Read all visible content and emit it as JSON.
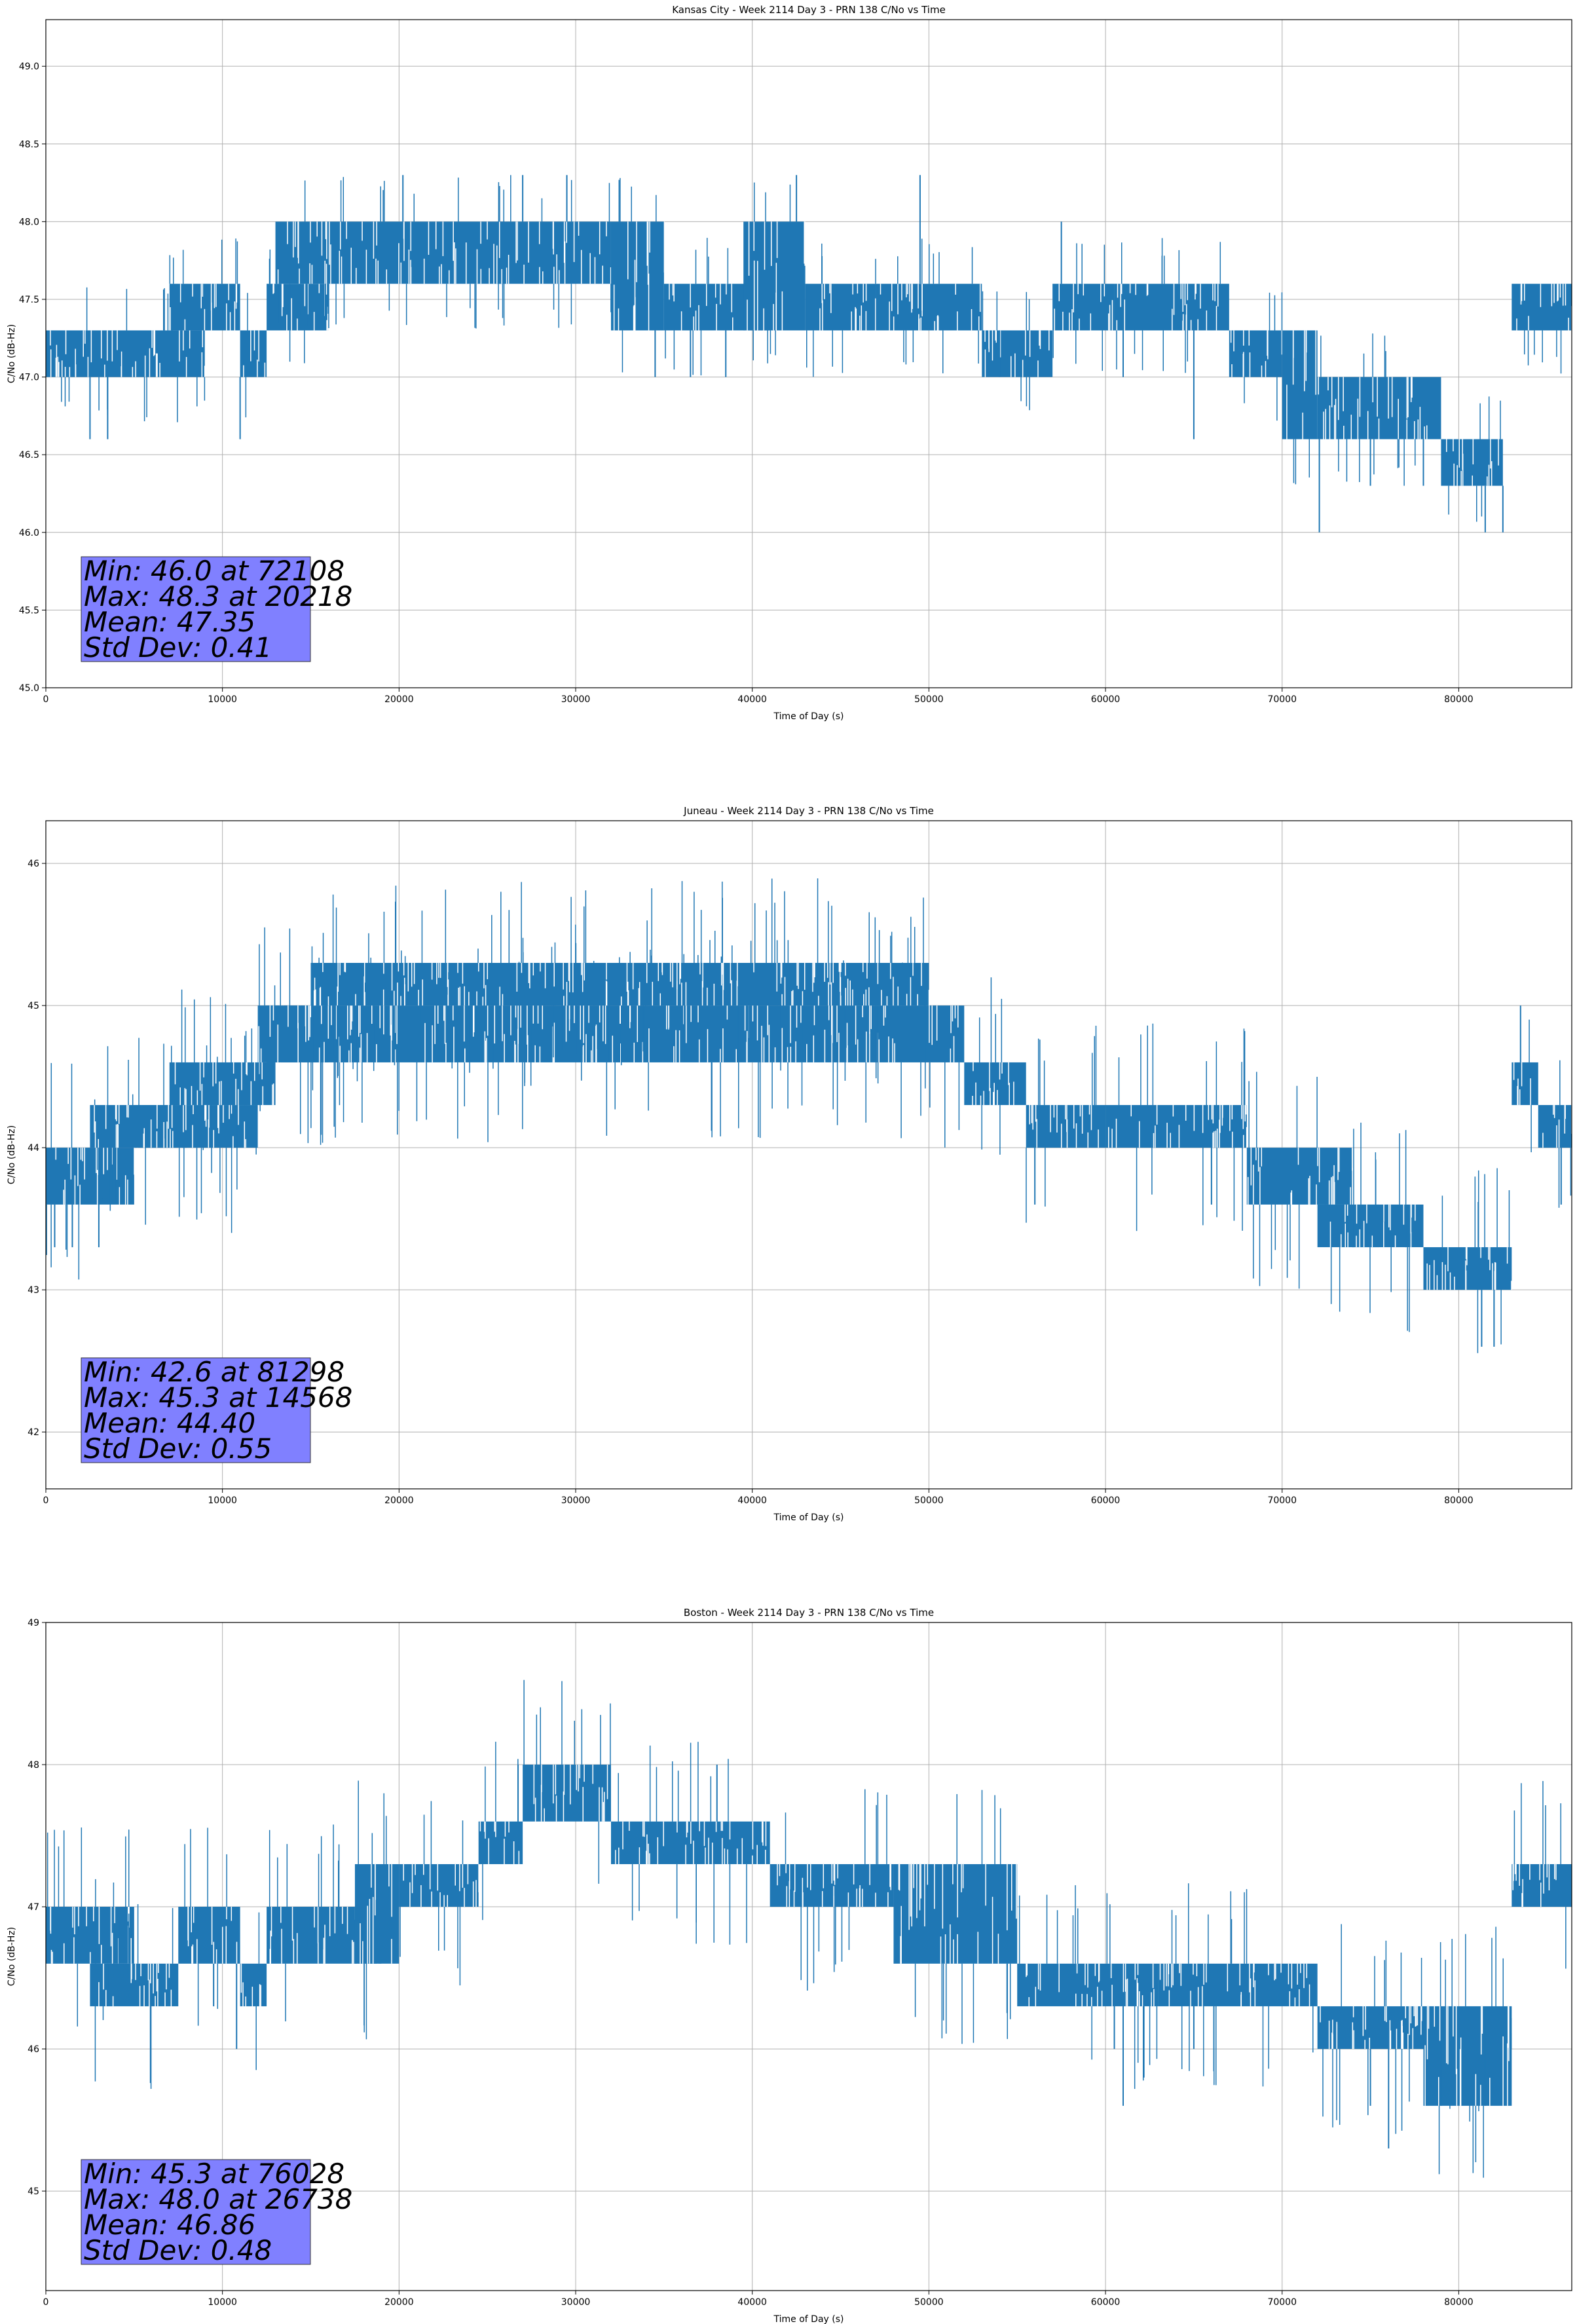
{
  "figure": {
    "background": "#ffffff",
    "line_color": "#1f77b4",
    "grid_color": "#b0b0b0",
    "stats_box_color": "#8080ff"
  },
  "chart_data": [
    {
      "type": "line",
      "title": "Kansas City - Week 2114 Day 3 - PRN 138 C/No vs Time",
      "xlabel": "Time of Day (s)",
      "ylabel": "C/No (dB-Hz)",
      "xlim": [
        0,
        86400
      ],
      "ylim": [
        45.0,
        49.3
      ],
      "xticks": [
        0,
        10000,
        20000,
        30000,
        40000,
        50000,
        60000,
        70000,
        80000
      ],
      "xtick_labels": [
        "0",
        "10000",
        "20000",
        "30000",
        "40000",
        "50000",
        "60000",
        "70000",
        "80000"
      ],
      "yticks": [
        45.0,
        45.5,
        46.0,
        46.5,
        47.0,
        47.5,
        48.0,
        48.5,
        49.0
      ],
      "ytick_labels": [
        "45.0",
        "45.5",
        "46.0",
        "46.5",
        "47.0",
        "47.5",
        "48.0",
        "48.5",
        "49.0"
      ],
      "grid": true,
      "series": [
        {
          "color": "#1f77b4",
          "bands": [
            [
              0,
              9000,
              47.0,
              47.3
            ],
            [
              7000,
              11000,
              47.3,
              47.6
            ],
            [
              11000,
              12500,
              47.0,
              47.3
            ],
            [
              12500,
              16000,
              47.3,
              47.6
            ],
            [
              13000,
              26000,
              47.6,
              48.0
            ],
            [
              25500,
              32000,
              47.6,
              48.0
            ],
            [
              32000,
              35000,
              47.3,
              48.0
            ],
            [
              35000,
              41000,
              47.3,
              47.6
            ],
            [
              39500,
              43000,
              47.3,
              48.0
            ],
            [
              43000,
              47000,
              47.3,
              47.6
            ],
            [
              47000,
              53000,
              47.3,
              47.6
            ],
            [
              53000,
              57000,
              47.0,
              47.3
            ],
            [
              57000,
              60500,
              47.3,
              47.6
            ],
            [
              60500,
              67000,
              47.3,
              47.6
            ],
            [
              67000,
              70000,
              47.0,
              47.3
            ],
            [
              70000,
              72000,
              46.6,
              47.3
            ],
            [
              72000,
              79000,
              46.6,
              47.0
            ],
            [
              79000,
              82500,
              46.3,
              46.6
            ],
            [
              83000,
              86400,
              47.3,
              47.6
            ]
          ],
          "spikes": [
            [
              2500,
              46.6
            ],
            [
              3500,
              46.6
            ],
            [
              11000,
              46.6
            ],
            [
              45000,
              47.6
            ],
            [
              72108,
              46.0
            ],
            [
              75000,
              46.3
            ],
            [
              78000,
              46.3
            ],
            [
              81500,
              46.0
            ],
            [
              82500,
              46.0
            ],
            [
              20218,
              48.3
            ],
            [
              27000,
              48.3
            ],
            [
              29500,
              48.3
            ],
            [
              42500,
              48.3
            ],
            [
              49500,
              48.3
            ],
            [
              34500,
              47.0
            ],
            [
              36500,
              47.0
            ],
            [
              38500,
              47.0
            ],
            [
              54000,
              47.0
            ],
            [
              57500,
              48.0
            ],
            [
              61000,
              47.0
            ],
            [
              65000,
              46.6
            ]
          ]
        }
      ],
      "stats_lines": [
        "Min: 46.0 at 72108",
        "Max: 48.3 at 20218",
        "Mean: 47.35",
        "Std Dev: 0.41"
      ]
    },
    {
      "type": "line",
      "title": "Juneau - Week 2114 Day 3 - PRN 138 C/No vs Time",
      "xlabel": "Time of Day (s)",
      "ylabel": "C/No (dB-Hz)",
      "xlim": [
        0,
        86400
      ],
      "ylim": [
        41.6,
        46.3
      ],
      "xticks": [
        0,
        10000,
        20000,
        30000,
        40000,
        50000,
        60000,
        70000,
        80000
      ],
      "xtick_labels": [
        "0",
        "10000",
        "20000",
        "30000",
        "40000",
        "50000",
        "60000",
        "70000",
        "80000"
      ],
      "yticks": [
        42,
        43,
        44,
        45,
        46
      ],
      "ytick_labels": [
        "42",
        "43",
        "44",
        "45",
        "46"
      ],
      "grid": true,
      "series": [
        {
          "color": "#1f77b4",
          "bands": [
            [
              0,
              5000,
              43.6,
              44.0
            ],
            [
              2500,
              8000,
              44.0,
              44.3
            ],
            [
              5000,
              12000,
              44.0,
              44.3
            ],
            [
              7000,
              13000,
              44.3,
              44.6
            ],
            [
              12000,
              16000,
              44.6,
              45.0
            ],
            [
              12500,
              52000,
              44.6,
              45.0
            ],
            [
              15000,
              50000,
              45.0,
              45.3
            ],
            [
              52000,
              55500,
              44.3,
              44.6
            ],
            [
              55500,
              60000,
              44.0,
              44.3
            ],
            [
              60000,
              68000,
              44.0,
              44.3
            ],
            [
              68000,
              74000,
              43.6,
              44.0
            ],
            [
              72000,
              75500,
              43.3,
              43.6
            ],
            [
              74000,
              78000,
              43.3,
              43.6
            ],
            [
              78000,
              83000,
              43.0,
              43.3
            ],
            [
              83000,
              84500,
              44.3,
              44.6
            ],
            [
              84500,
              86400,
              44.0,
              44.3
            ]
          ],
          "spikes": [
            [
              500,
              43.3
            ],
            [
              1500,
              43.3
            ],
            [
              3000,
              43.3
            ],
            [
              8000,
              44.6
            ],
            [
              12000,
              45.0
            ],
            [
              20000,
              45.3
            ],
            [
              56000,
              43.6
            ],
            [
              66000,
              43.6
            ],
            [
              74000,
              43.3
            ],
            [
              77000,
              43.3
            ],
            [
              79000,
              43.0
            ],
            [
              81298,
              42.6
            ],
            [
              82000,
              42.6
            ],
            [
              83500,
              45.0
            ],
            [
              85800,
              43.6
            ]
          ]
        }
      ],
      "stats_lines": [
        "Min: 42.6 at 81298",
        "Max: 45.3 at 14568",
        "Mean: 44.40",
        "Std Dev: 0.55"
      ]
    },
    {
      "type": "line",
      "title": "Boston - Week 2114 Day 3 - PRN 138 C/No vs Time",
      "xlabel": "Time of Day (s)",
      "ylabel": "C/No (dB-Hz)",
      "xlim": [
        0,
        86400
      ],
      "ylim": [
        44.3,
        49.0
      ],
      "xticks": [
        0,
        10000,
        20000,
        30000,
        40000,
        50000,
        60000,
        70000,
        80000
      ],
      "xtick_labels": [
        "0",
        "10000",
        "20000",
        "30000",
        "40000",
        "50000",
        "60000",
        "70000",
        "80000"
      ],
      "yticks": [
        45,
        46,
        47,
        48,
        49
      ],
      "ytick_labels": [
        "45",
        "46",
        "47",
        "48",
        "49"
      ],
      "grid": true,
      "series": [
        {
          "color": "#1f77b4",
          "bands": [
            [
              0,
              5000,
              46.6,
              47.0
            ],
            [
              2500,
              7500,
              46.3,
              46.6
            ],
            [
              7500,
              11000,
              46.6,
              47.0
            ],
            [
              11000,
              12500,
              46.3,
              46.6
            ],
            [
              12500,
              19000,
              46.6,
              47.0
            ],
            [
              17500,
              20000,
              46.6,
              47.3
            ],
            [
              20000,
              24500,
              47.0,
              47.3
            ],
            [
              24500,
              27000,
              47.3,
              47.6
            ],
            [
              27000,
              32000,
              47.6,
              48.0
            ],
            [
              32000,
              41000,
              47.3,
              47.6
            ],
            [
              41000,
              48000,
              47.0,
              47.3
            ],
            [
              48000,
              55000,
              46.6,
              47.3
            ],
            [
              55000,
              63000,
              46.3,
              46.6
            ],
            [
              63000,
              72000,
              46.3,
              46.6
            ],
            [
              72000,
              83000,
              46.0,
              46.3
            ],
            [
              78000,
              83000,
              45.6,
              46.3
            ],
            [
              83000,
              86400,
              47.0,
              47.3
            ]
          ],
          "spikes": [
            [
              3500,
              46.3
            ],
            [
              9500,
              46.3
            ],
            [
              10800,
              46.0
            ],
            [
              26738,
              48.0
            ],
            [
              38000,
              48.0
            ],
            [
              60500,
              46.0
            ],
            [
              61000,
              45.6
            ],
            [
              65000,
              46.0
            ],
            [
              75000,
              45.6
            ],
            [
              76028,
              45.3
            ],
            [
              79000,
              45.6
            ],
            [
              81500,
              45.6
            ]
          ]
        }
      ],
      "stats_lines": [
        "Min: 45.3 at 76028",
        "Max: 48.0 at 26738",
        "Mean: 46.86",
        "Std Dev: 0.48"
      ]
    }
  ]
}
